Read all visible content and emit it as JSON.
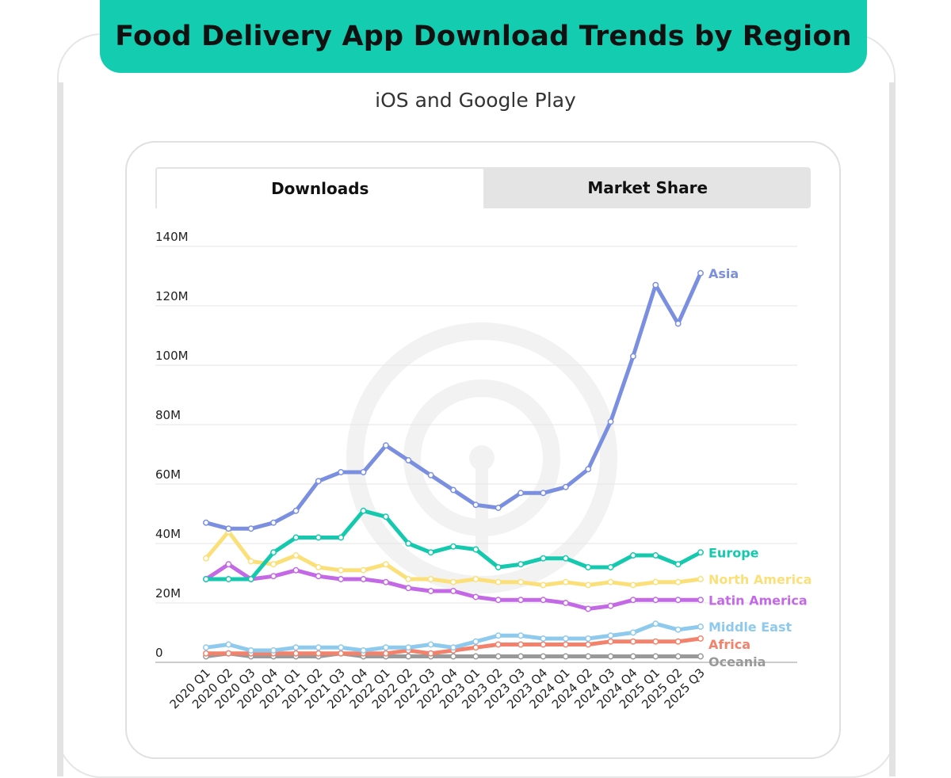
{
  "header": {
    "title": "Food Delivery App Download Trends by Region",
    "subtitle": "iOS and Google Play"
  },
  "tabs": [
    {
      "label": "Downloads",
      "active": true
    },
    {
      "label": "Market Share",
      "active": false
    }
  ],
  "chart_data": {
    "type": "line",
    "ylim": [
      0,
      140
    ],
    "yticks": [
      0,
      20,
      40,
      60,
      80,
      100,
      120,
      140
    ],
    "ytick_labels": [
      "0",
      "20M",
      "40M",
      "60M",
      "80M",
      "100M",
      "120M",
      "140M"
    ],
    "categories": [
      "2020 Q1",
      "2020 Q2",
      "2020 Q3",
      "2020 Q4",
      "2021 Q1",
      "2021 Q2",
      "2021 Q3",
      "2021 Q4",
      "2022 Q1",
      "2022 Q2",
      "2022 Q3",
      "2022 Q4",
      "2023 Q1",
      "2023 Q2",
      "2023 Q3",
      "2023 Q4",
      "2024 Q1",
      "2024 Q2",
      "2024 Q3",
      "2024 Q4",
      "2025 Q1",
      "2025 Q2",
      "2025 Q3"
    ],
    "series": [
      {
        "name": "Asia",
        "color": "#7b8fe0",
        "values": [
          47,
          45,
          45,
          47,
          51,
          61,
          64,
          64,
          73,
          68,
          63,
          58,
          53,
          52,
          57,
          57,
          59,
          65,
          81,
          103,
          127,
          114,
          131
        ]
      },
      {
        "name": "Europe",
        "color": "#14c9ae",
        "values": [
          28,
          28,
          28,
          37,
          42,
          42,
          42,
          51,
          49,
          40,
          37,
          39,
          38,
          32,
          33,
          35,
          35,
          32,
          32,
          36,
          36,
          33,
          37
        ]
      },
      {
        "name": "North America",
        "color": "#fbe07a",
        "values": [
          35,
          44,
          34,
          33,
          36,
          32,
          31,
          31,
          33,
          28,
          28,
          27,
          28,
          27,
          27,
          26,
          27,
          26,
          27,
          26,
          27,
          27,
          28
        ]
      },
      {
        "name": "Latin America",
        "color": "#c469e6",
        "values": [
          28,
          33,
          28,
          29,
          31,
          29,
          28,
          28,
          27,
          25,
          24,
          24,
          22,
          21,
          21,
          21,
          20,
          18,
          19,
          21,
          21,
          21,
          21
        ]
      },
      {
        "name": "Middle East",
        "color": "#8ec9ee",
        "values": [
          5,
          6,
          4,
          4,
          5,
          5,
          5,
          4,
          5,
          5,
          6,
          5,
          7,
          9,
          9,
          8,
          8,
          8,
          9,
          10,
          13,
          11,
          12
        ]
      },
      {
        "name": "Africa",
        "color": "#f2826c",
        "values": [
          3,
          3,
          3,
          3,
          3,
          3,
          3,
          3,
          3,
          4,
          3,
          4,
          5,
          6,
          6,
          6,
          6,
          6,
          7,
          7,
          7,
          7,
          8
        ]
      },
      {
        "name": "Oceania",
        "color": "#999999",
        "values": [
          2,
          3,
          2,
          2,
          2,
          2,
          3,
          2,
          2,
          2,
          2,
          2,
          2,
          2,
          2,
          2,
          2,
          2,
          2,
          2,
          2,
          2,
          2
        ]
      }
    ]
  }
}
